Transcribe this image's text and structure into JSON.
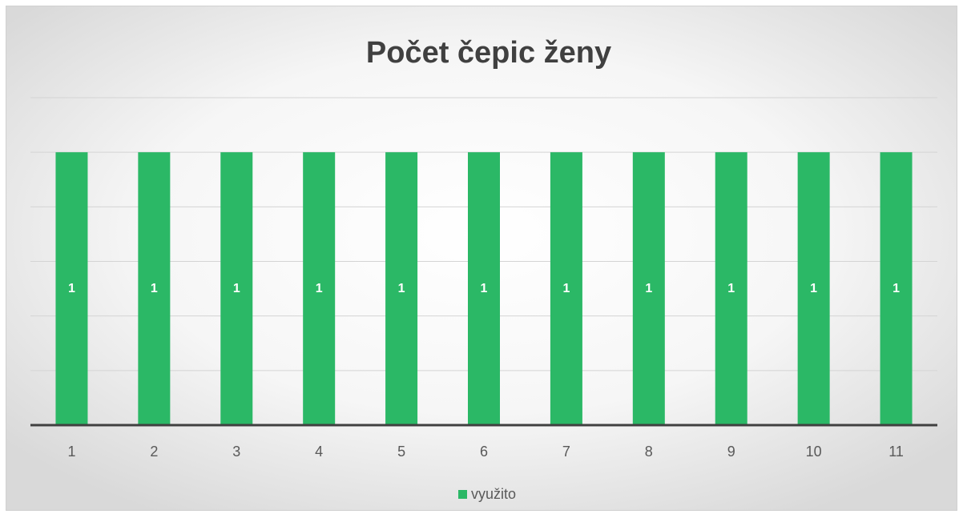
{
  "chart_data": {
    "type": "bar",
    "title": "Počet čepic ženy",
    "categories": [
      "1",
      "2",
      "3",
      "4",
      "5",
      "6",
      "7",
      "8",
      "9",
      "10",
      "11"
    ],
    "series": [
      {
        "name": "využito",
        "color": "#2bb866",
        "values": [
          1,
          1,
          1,
          1,
          1,
          1,
          1,
          1,
          1,
          1,
          1
        ]
      }
    ],
    "ylim": [
      0,
      1.2
    ],
    "yticks": [
      0,
      0.2,
      0.4,
      0.6,
      0.8,
      1,
      1.2
    ],
    "grid": true,
    "legend": "bottom"
  }
}
